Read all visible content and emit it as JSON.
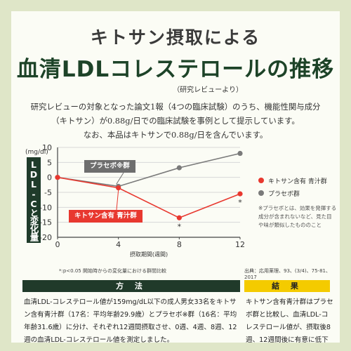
{
  "header": {
    "title_line1": "キトサン摂取による",
    "title_line2": "血清LDLコレステロールの推移",
    "subtitle": "（研究レビューより）"
  },
  "description": "研究レビューの対象となった論文1報（4つの臨床試験）のうち、機能性関与成分\n（キトサン）が0.88g/日での臨床試験を事例として提示しています。\nなお、本品はキトサンで0.88g/日を含んでいます。",
  "chart_data": {
    "type": "line",
    "ylabel_unit": "(mg/dl)",
    "ylabel": "LDL-Cと変化量",
    "xlabel": "摂取期間(週間)",
    "x": [
      0,
      4,
      8,
      12
    ],
    "xticks": [
      "0",
      "4",
      "8",
      "12"
    ],
    "ylim": [
      -20,
      10
    ],
    "yticks": [
      "10",
      "5",
      "0",
      "-5",
      "-10",
      "-15",
      "-20"
    ],
    "series": [
      {
        "name": "キトサン含有 青汁群",
        "label": "キトサン含有 青汁群",
        "color": "#e8382f",
        "values": [
          0,
          -3.5,
          -13.5,
          -5.5
        ]
      },
      {
        "name": "プラセボ群",
        "label": "プラセボ※群",
        "color": "#7a7a7a",
        "values": [
          0,
          -3,
          3.2,
          8
        ]
      }
    ],
    "annotations": [
      "*",
      "*"
    ],
    "grid": "horizontal"
  },
  "legend": {
    "items": [
      {
        "label": "キトサン含有 青汁群",
        "color": "#e8382f"
      },
      {
        "label": "プラセボ群",
        "color": "#7a7a7a"
      }
    ],
    "note": "※プラセボとは、効果を発揮する成分が含まれないなど、見た目や味が類似したもののこと"
  },
  "footnote": "*:p<0.05 開始時からの変化量における群間比較",
  "source": "出典：応用薬理、93、(3/4)、75-81、2017",
  "method": {
    "heading": "方 法",
    "body": "血清LDL-コレステロール値が159mg/dL以下の成人男女33名をキトサン含有青汁群（17名：平均年齢29.9歳）とプラセボ※群（16名：平均年齢31.6歳）に分け、それぞれ12週間摂取させ、0週、4週、8週、12週の血清LDL-コレステロール値を測定しました。"
  },
  "result": {
    "heading": "結 果",
    "body": "キトサン含有青汁群はプラセボ群と比較し、血清LDL-コレステロール値が、摂取後8週、12週間後に有意に低下しました。"
  }
}
